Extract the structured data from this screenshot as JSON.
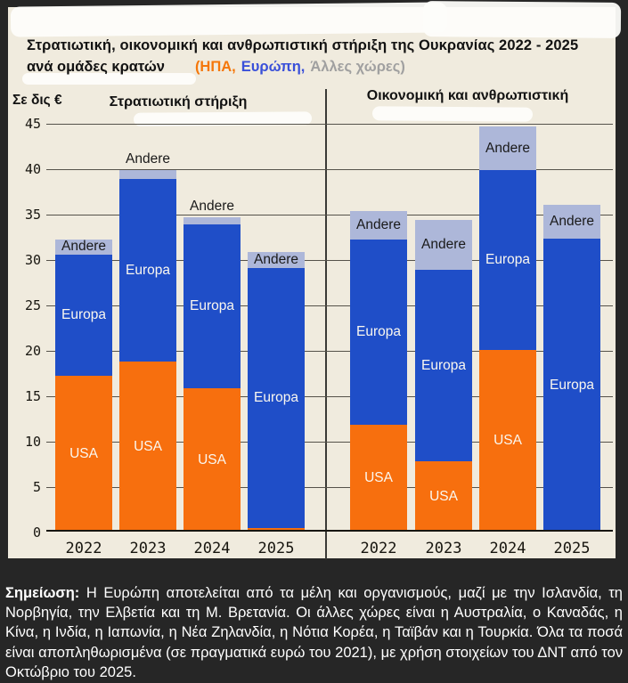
{
  "title": {
    "line1": "Στρατιωτική, οικονομική και ανθρωπιστική στήριξη της Ουκρανίας 2022 - 2025",
    "line2_prefix": "ανά ομάδες κρατών",
    "legend": [
      {
        "text": "(ΗΠΑ,",
        "color": "#F5770A"
      },
      {
        "text": "Ευρώπη,",
        "color": "#3A50D9"
      },
      {
        "text": "Άλλες χώρες)",
        "color": "#A0A0A0"
      }
    ]
  },
  "y_axis": {
    "label": "Σε δις €",
    "ticks": [
      45,
      40,
      35,
      30,
      25,
      20,
      15,
      10,
      5,
      0
    ]
  },
  "chart_data": {
    "type": "bar",
    "stacked": true,
    "unit": "δις €",
    "categories": [
      "2022",
      "2023",
      "2024",
      "2025"
    ],
    "ylim": [
      0,
      45
    ],
    "grid": true,
    "panels": [
      {
        "title": "Στρατιωτική στήριξη",
        "series": [
          {
            "name": "USA",
            "color": "#F76F0E",
            "values": [
              17.2,
              18.7,
              15.8,
              0.4
            ]
          },
          {
            "name": "Europa",
            "color": "#1F4EC8",
            "values": [
              13.3,
              20.1,
              18.0,
              28.6
            ]
          },
          {
            "name": "Andere",
            "color": "#ADB7D9",
            "values": [
              1.7,
              1.0,
              0.8,
              1.8
            ]
          }
        ],
        "totals": [
          32.2,
          39.8,
          34.6,
          30.8
        ]
      },
      {
        "title": "Οικονομική και ανθρωπιστική",
        "series": [
          {
            "name": "USA",
            "color": "#F76F0E",
            "values": [
              11.8,
              7.7,
              20.0,
              0
            ]
          },
          {
            "name": "Europa",
            "color": "#1F4EC8",
            "values": [
              20.4,
              21.1,
              19.8,
              32.3
            ]
          },
          {
            "name": "Andere",
            "color": "#ADB7D9",
            "values": [
              3.1,
              5.5,
              4.8,
              3.7
            ]
          }
        ],
        "totals": [
          35.3,
          34.3,
          44.6,
          36.0
        ]
      }
    ]
  },
  "note": {
    "label": "Σημείωση:",
    "text": " Η Ευρώπη αποτελείται από τα μέλη και οργανισμούς, μαζί με την Ισλανδία, τη Νορβηγία, την Ελβετία και τη Μ. Βρετανία. Οι άλλες χώρες είναι η Αυστραλία, ο Καναδάς, η Κίνα, η Ινδία, η Ιαπωνία, η Νέα Ζηλανδία, η Νότια Κορέα, η Ταϊβάν και η Τουρκία. Όλα τα ποσά είναι αποπληθωρισμένα (σε πραγματικά ευρώ του 2021), με χρήση στοιχείων του ΔΝΤ από τον Οκτώβριο του 2025."
  },
  "colors": {
    "background_card": "#F0EBDE",
    "background_frame": "#262626",
    "usa": "#F76F0E",
    "europa": "#1F4EC8",
    "andere": "#ADB7D9",
    "gridline": "#55524a",
    "note_text": "#FFFFFF"
  }
}
